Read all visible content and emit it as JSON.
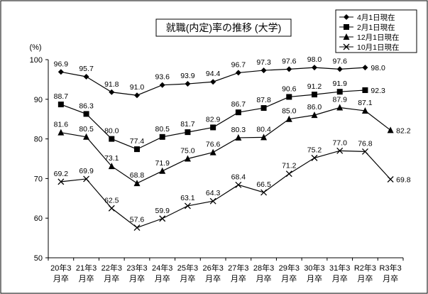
{
  "chart_data": {
    "type": "line",
    "title": "就職(内定)率の推移 (大学)",
    "ylabel": "(%)",
    "xlabel": "",
    "ylim": [
      50,
      100
    ],
    "yticks": [
      50,
      60,
      70,
      80,
      90,
      100
    ],
    "grid": false,
    "legend_position": "top-right",
    "categories": [
      [
        "20年3",
        "月卒"
      ],
      [
        "21年3",
        "月卒"
      ],
      [
        "22年3",
        "月卒"
      ],
      [
        "23年3",
        "月卒"
      ],
      [
        "24年3",
        "月卒"
      ],
      [
        "25年3",
        "月卒"
      ],
      [
        "26年3",
        "月卒"
      ],
      [
        "27年3",
        "月卒"
      ],
      [
        "28年3",
        "月卒"
      ],
      [
        "29年3",
        "月卒"
      ],
      [
        "30年3",
        "月卒"
      ],
      [
        "31年3",
        "月卒"
      ],
      [
        "R2年3",
        "月卒"
      ],
      [
        "R3年3",
        "月卒"
      ]
    ],
    "series": [
      {
        "name": "4月1日現在",
        "marker": "diamond",
        "values": [
          96.9,
          95.7,
          91.8,
          91.0,
          93.6,
          93.9,
          94.4,
          96.7,
          97.3,
          97.6,
          98.0,
          97.6,
          98.0,
          null
        ],
        "labels": [
          "96.9",
          "95.7",
          "91.8",
          "91.0",
          "93.6",
          "93.9",
          "94.4",
          "96.7",
          "97.3",
          "97.6",
          "98.0",
          "97.6",
          "98.0",
          ""
        ]
      },
      {
        "name": "2月1日現在",
        "marker": "square",
        "values": [
          88.7,
          86.3,
          80.0,
          77.4,
          80.5,
          81.7,
          82.9,
          86.7,
          87.8,
          90.6,
          91.2,
          91.9,
          92.3,
          null
        ],
        "labels": [
          "88.7",
          "86.3",
          "80.0",
          "77.4",
          "80.5",
          "81.7",
          "82.9",
          "86.7",
          "87.8",
          "90.6",
          "91.2",
          "91.9",
          "92.3",
          ""
        ]
      },
      {
        "name": "12月1日現在",
        "marker": "triangle",
        "values": [
          81.6,
          80.5,
          73.1,
          68.8,
          71.9,
          75.0,
          76.6,
          80.3,
          80.4,
          85.0,
          86.0,
          87.9,
          87.1,
          82.2
        ],
        "labels": [
          "81.6",
          "80.5",
          "73.1",
          "68.8",
          "71.9",
          "75.0",
          "76.6",
          "80.3",
          "80.4",
          "85.0",
          "86.0",
          "87.9",
          "87.1",
          "82.2"
        ]
      },
      {
        "name": "10月1日現在",
        "marker": "x",
        "values": [
          69.2,
          69.9,
          62.5,
          57.6,
          59.9,
          63.1,
          64.3,
          68.4,
          66.5,
          71.2,
          75.2,
          77.0,
          76.8,
          69.8
        ],
        "labels": [
          "69.2",
          "69.9",
          "62.5",
          "57.6",
          "59.9",
          "63.1",
          "64.3",
          "68.4",
          "66.5",
          "71.2",
          "75.2",
          "77.0",
          "76.8",
          "69.8"
        ]
      }
    ]
  }
}
